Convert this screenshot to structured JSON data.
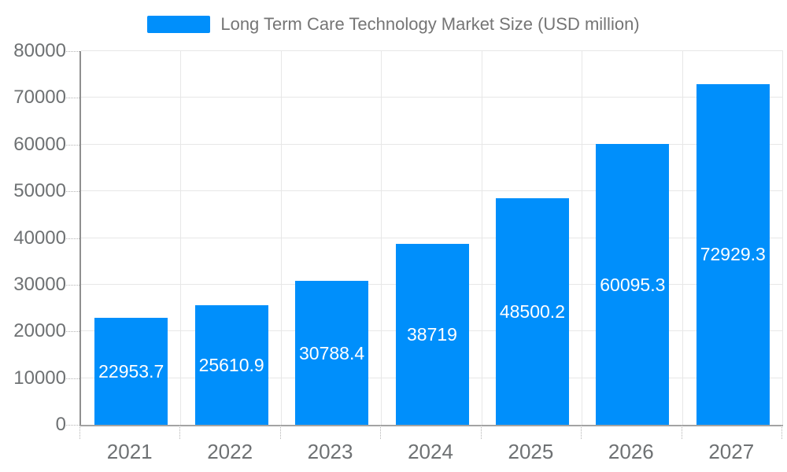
{
  "legend": {
    "label": "Long Term Care Technology Market Size (USD million)"
  },
  "chart_data": {
    "type": "bar",
    "title": "Long Term Care Technology Market Size (USD million)",
    "categories": [
      "2021",
      "2022",
      "2023",
      "2024",
      "2025",
      "2026",
      "2027"
    ],
    "values": [
      22953.7,
      25610.9,
      30788.4,
      38719,
      48500.2,
      60095.3,
      72929.3
    ],
    "value_labels": [
      "22953.7",
      "25610.9",
      "30788.4",
      "38719",
      "48500.2",
      "60095.3",
      "72929.3"
    ],
    "xlabel": "",
    "ylabel": "",
    "ylim": [
      0,
      80000
    ],
    "yticks": [
      0,
      10000,
      20000,
      30000,
      40000,
      50000,
      60000,
      70000,
      80000
    ],
    "grid": true,
    "legend_position": "top"
  },
  "colors": {
    "bar": "#008FFB",
    "data_label": "#ffffff",
    "grid_line": "#e7e7e7",
    "axis_line": "#9a9a9a",
    "axis_text": "#6e7173",
    "legend_text": "#757575"
  }
}
